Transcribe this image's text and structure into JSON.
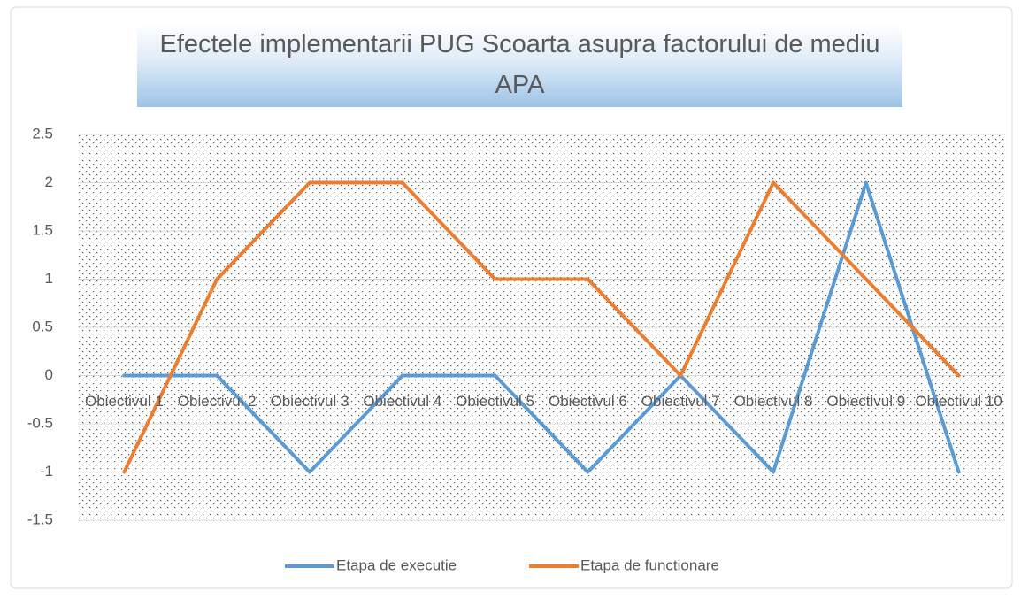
{
  "chart_data": {
    "type": "line",
    "title": "Efectele implementarii PUG Scoarta asupra factorului de mediu APA",
    "categories": [
      "Obiectivul 1",
      "Obiectivul 2",
      "Obiectivul 3",
      "Obiectivul 4",
      "Obiectivul 5",
      "Obiectivul 6",
      "Obiectivul 7",
      "Obiectivul 8",
      "Obiectivul 9",
      "Obiectivul 10"
    ],
    "series": [
      {
        "name": "Etapa de executie",
        "color": "#5b9bd5",
        "values": [
          0,
          0,
          -1,
          0,
          0,
          -1,
          0,
          -1,
          2,
          -1
        ]
      },
      {
        "name": "Etapa de functionare",
        "color": "#ed7d31",
        "values": [
          -1,
          1,
          2,
          2,
          1,
          1,
          0,
          2,
          1,
          0
        ]
      }
    ],
    "ylim": [
      -1.5,
      2.5
    ],
    "yticks": [
      -1.5,
      -1,
      -0.5,
      0,
      0.5,
      1,
      1.5,
      2,
      2.5
    ],
    "grid": true,
    "legend": "bottom"
  }
}
